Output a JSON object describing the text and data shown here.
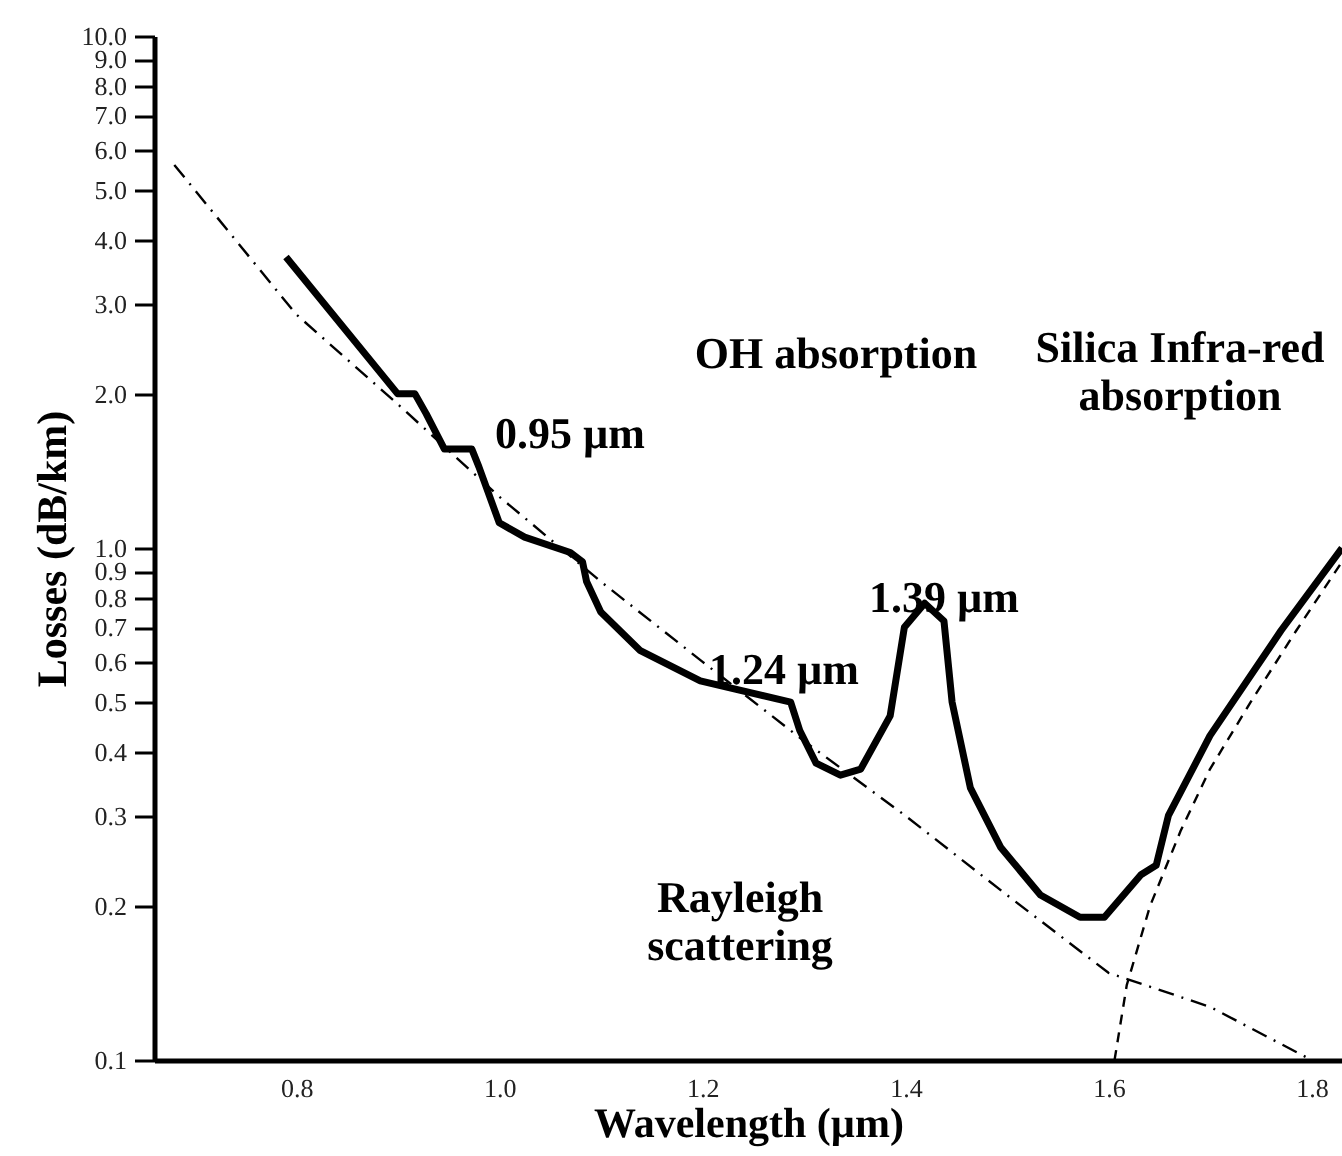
{
  "chart_data": {
    "type": "line",
    "xlabel": "Wavelength (µm)",
    "ylabel": "Losses (dB/km)",
    "log": "y",
    "xlim": [
      0.66,
      1.83
    ],
    "ylim": [
      0.1,
      10
    ],
    "xticks": [
      0.8,
      {
        "value": 1,
        "label": "1.0"
      },
      1.2,
      1.4,
      1.6,
      1.8
    ],
    "yticks": [
      0.1,
      0.2,
      0.3,
      0.4,
      0.5,
      0.6,
      0.7,
      0.8,
      0.9,
      {
        "value": 1,
        "label": "1.0"
      },
      {
        "value": 2,
        "label": "2.0"
      },
      {
        "value": 3,
        "label": "3.0"
      },
      {
        "value": 4,
        "label": "4.0"
      },
      {
        "value": 5,
        "label": "5.0"
      },
      {
        "value": 6,
        "label": "6.0"
      },
      {
        "value": 7,
        "label": "7.0"
      },
      {
        "value": 8,
        "label": "8.0"
      },
      {
        "value": 9,
        "label": "9.0"
      },
      {
        "value": 10,
        "label": "10.0"
      }
    ],
    "grid": false,
    "marker": "none",
    "series": [
      {
        "color": "#000000",
        "line_style": "solid",
        "x": [
          0.79,
          0.9,
          0.917,
          0.928,
          0.946,
          0.973,
          0.98,
          1.0,
          1.025,
          1.07,
          1.082,
          1.086,
          1.1,
          1.139,
          1.198,
          1.287,
          1.296,
          1.312,
          1.336,
          1.356,
          1.385,
          1.399,
          1.419,
          1.438,
          1.446,
          1.464,
          1.494,
          1.533,
          1.572,
          1.596,
          1.632,
          1.647,
          1.659,
          1.7,
          1.77,
          1.83
        ],
        "values": [
          3.7,
          2.0,
          2.0,
          1.83,
          1.56,
          1.56,
          1.44,
          1.12,
          1.05,
          0.98,
          0.94,
          0.86,
          0.75,
          0.63,
          0.55,
          0.5,
          0.44,
          0.38,
          0.36,
          0.37,
          0.47,
          0.7,
          0.78,
          0.72,
          0.5,
          0.34,
          0.26,
          0.21,
          0.19,
          0.19,
          0.23,
          0.24,
          0.3,
          0.43,
          0.69,
          1.0
        ]
      },
      {
        "color": "#000000",
        "line_style": "dashdot",
        "x": [
          0.68,
          0.8,
          0.9,
          1.0,
          1.1,
          1.2,
          1.3,
          1.4,
          1.5,
          1.6,
          1.7,
          1.8
        ],
        "values": [
          5.6,
          2.86,
          1.91,
          1.26,
          0.86,
          0.6,
          0.42,
          0.3,
          0.21,
          0.148,
          0.127,
          0.1
        ]
      },
      {
        "color": "#000000",
        "line_style": "dashed",
        "x": [
          1.606,
          1.618,
          1.641,
          1.671,
          1.7,
          1.74,
          1.785,
          1.83
        ],
        "values": [
          0.1,
          0.14,
          0.2,
          0.28,
          0.37,
          0.5,
          0.69,
          0.94
        ]
      }
    ],
    "annotations": [
      "OH absorption",
      "0.95 µm",
      "1.24 µm",
      "1.39 µm",
      "Silica Infra-red\nabsorption",
      "Rayleigh\nscattering"
    ]
  }
}
